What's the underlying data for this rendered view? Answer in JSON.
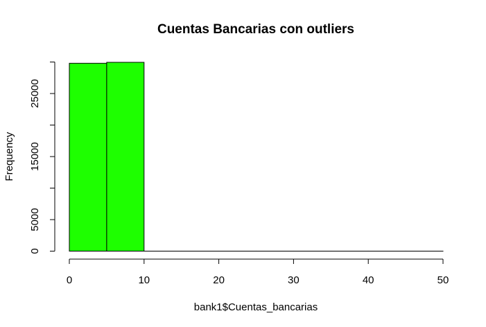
{
  "chart_data": {
    "type": "bar",
    "title": "Cuentas Bancarias con outliers",
    "xlabel": "bank1$Cuentas_bancarias",
    "ylabel": "Frequency",
    "bar_color": "#1eff00",
    "bin_edges": [
      0,
      5,
      10,
      15,
      20,
      25,
      30,
      35,
      40,
      45,
      50
    ],
    "values": [
      29800,
      29950,
      2,
      2,
      2,
      2,
      2,
      2,
      2,
      2
    ],
    "xlim": [
      0,
      50
    ],
    "ylim": [
      0,
      30000
    ],
    "x_ticks": [
      0,
      10,
      20,
      30,
      40,
      50
    ],
    "y_ticks": [
      0,
      5000,
      15000,
      25000
    ],
    "y_minor_ticks": [
      10000,
      20000,
      30000
    ],
    "grid": false,
    "legend": "none"
  }
}
